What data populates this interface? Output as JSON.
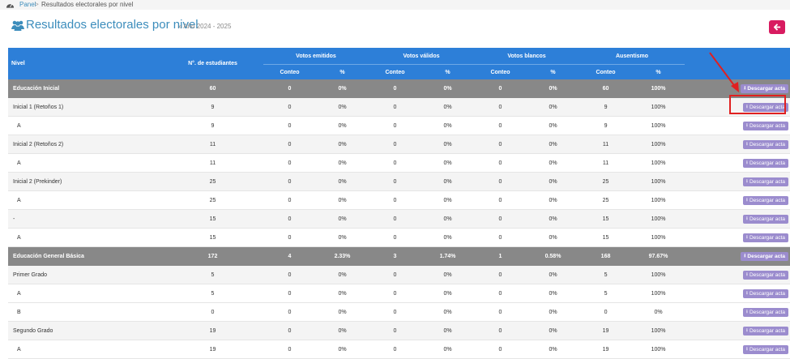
{
  "breadcrumb": {
    "home": "Panel",
    "separator": ">",
    "current": "Resultados electorales por nivel"
  },
  "header": {
    "title": "Resultados electorales por nivel",
    "subtitle": "» Año 2024 - 2025"
  },
  "table": {
    "col_level": "Nivel",
    "col_students": "N°. de estudiantes",
    "groups": [
      "Votos emitidos",
      "Votos válidos",
      "Votos blancos",
      "Ausentismo"
    ],
    "sub_count": "Conteo",
    "sub_pct": "%",
    "download_label": "Descargar acta",
    "rows": [
      {
        "kind": "group",
        "level": "Educación Inicial",
        "students": "60",
        "v1": "0",
        "p1": "0%",
        "v2": "0",
        "p2": "0%",
        "v3": "0",
        "p3": "0%",
        "v4": "60",
        "p4": "100%"
      },
      {
        "kind": "sub",
        "level": "Inicial 1 (Retoños 1)",
        "students": "9",
        "v1": "0",
        "p1": "0%",
        "v2": "0",
        "p2": "0%",
        "v3": "0",
        "p3": "0%",
        "v4": "9",
        "p4": "100%"
      },
      {
        "kind": "sect",
        "level": "A",
        "students": "9",
        "v1": "0",
        "p1": "0%",
        "v2": "0",
        "p2": "0%",
        "v3": "0",
        "p3": "0%",
        "v4": "9",
        "p4": "100%"
      },
      {
        "kind": "sub",
        "level": "Inicial 2 (Retoños 2)",
        "students": "11",
        "v1": "0",
        "p1": "0%",
        "v2": "0",
        "p2": "0%",
        "v3": "0",
        "p3": "0%",
        "v4": "11",
        "p4": "100%"
      },
      {
        "kind": "sect",
        "level": "A",
        "students": "11",
        "v1": "0",
        "p1": "0%",
        "v2": "0",
        "p2": "0%",
        "v3": "0",
        "p3": "0%",
        "v4": "11",
        "p4": "100%"
      },
      {
        "kind": "sub",
        "level": "Inicial 2 (Prekinder)",
        "students": "25",
        "v1": "0",
        "p1": "0%",
        "v2": "0",
        "p2": "0%",
        "v3": "0",
        "p3": "0%",
        "v4": "25",
        "p4": "100%"
      },
      {
        "kind": "sect",
        "level": "A",
        "students": "25",
        "v1": "0",
        "p1": "0%",
        "v2": "0",
        "p2": "0%",
        "v3": "0",
        "p3": "0%",
        "v4": "25",
        "p4": "100%"
      },
      {
        "kind": "sub",
        "level": "-",
        "students": "15",
        "v1": "0",
        "p1": "0%",
        "v2": "0",
        "p2": "0%",
        "v3": "0",
        "p3": "0%",
        "v4": "15",
        "p4": "100%"
      },
      {
        "kind": "sect",
        "level": "A",
        "students": "15",
        "v1": "0",
        "p1": "0%",
        "v2": "0",
        "p2": "0%",
        "v3": "0",
        "p3": "0%",
        "v4": "15",
        "p4": "100%"
      },
      {
        "kind": "group",
        "level": "Educación General Básica",
        "students": "172",
        "v1": "4",
        "p1": "2.33%",
        "v2": "3",
        "p2": "1.74%",
        "v3": "1",
        "p3": "0.58%",
        "v4": "168",
        "p4": "97.67%"
      },
      {
        "kind": "sub",
        "level": "Primer Grado",
        "students": "5",
        "v1": "0",
        "p1": "0%",
        "v2": "0",
        "p2": "0%",
        "v3": "0",
        "p3": "0%",
        "v4": "5",
        "p4": "100%"
      },
      {
        "kind": "sect",
        "level": "A",
        "students": "5",
        "v1": "0",
        "p1": "0%",
        "v2": "0",
        "p2": "0%",
        "v3": "0",
        "p3": "0%",
        "v4": "5",
        "p4": "100%"
      },
      {
        "kind": "sect",
        "level": "B",
        "students": "0",
        "v1": "0",
        "p1": "0%",
        "v2": "0",
        "p2": "0%",
        "v3": "0",
        "p3": "0%",
        "v4": "0",
        "p4": "0%"
      },
      {
        "kind": "sub",
        "level": "Segundo Grado",
        "students": "19",
        "v1": "0",
        "p1": "0%",
        "v2": "0",
        "p2": "0%",
        "v3": "0",
        "p3": "0%",
        "v4": "19",
        "p4": "100%"
      },
      {
        "kind": "sect",
        "level": "A",
        "students": "19",
        "v1": "0",
        "p1": "0%",
        "v2": "0",
        "p2": "0%",
        "v3": "0",
        "p3": "0%",
        "v4": "19",
        "p4": "100%"
      }
    ]
  },
  "colors": {
    "primary": "#2d7fd8",
    "title": "#3c8dbc",
    "group_row": "#888888",
    "download_button": "#9b8cce",
    "back_button": "#d81b60",
    "highlight": "#e02020"
  },
  "icons": {
    "home": "tachometer-icon",
    "title": "users-icon",
    "back": "arrow-left-icon",
    "download": "download-icon"
  }
}
